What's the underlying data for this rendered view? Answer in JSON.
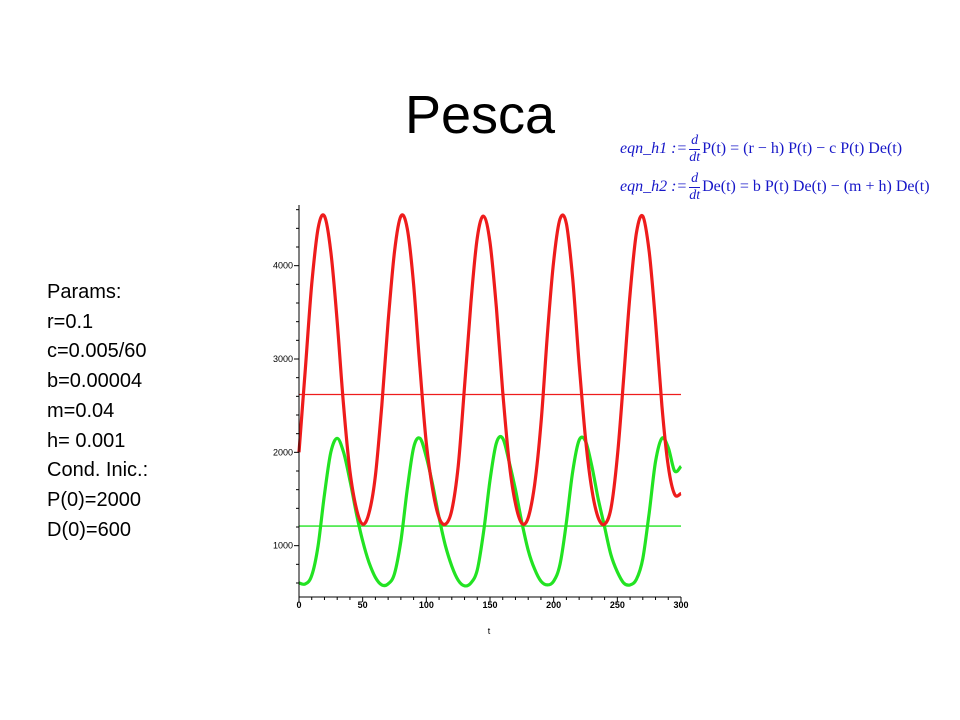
{
  "slide": {
    "title": "Pesca",
    "params_lines": [
      "Params:",
      "r=0.1",
      "c=0.005/60",
      "b=0.00004",
      "m=0.04",
      "h= 0.001",
      "Cond. Inic.:",
      "P(0)=2000",
      "D(0)=600"
    ],
    "eqn1": {
      "lhs": "eqn_h1 :=",
      "num": "d",
      "den": "dt",
      "rhs": "P(t) = (r − h) P(t) − c P(t) De(t)"
    },
    "eqn2": {
      "lhs": "eqn_h2 :=",
      "num": "d",
      "den": "dt",
      "rhs": "De(t) = b P(t) De(t) − (m + h) De(t)"
    }
  },
  "chart_data": {
    "type": "line",
    "title": "",
    "xlabel": "t",
    "ylabel": "",
    "xlim": [
      0,
      300
    ],
    "ylim": [
      450,
      4650
    ],
    "x_ticks": [
      0,
      50,
      100,
      150,
      200,
      250,
      300
    ],
    "y_ticks": [
      1000,
      2000,
      3000,
      4000
    ],
    "grid": false,
    "legend": "none",
    "colors": {
      "prey": "#ee1c1c",
      "predator": "#22e322",
      "prey_eq": "#ee1c1c",
      "predator_eq": "#22e322",
      "axis": "#000000"
    },
    "series": [
      {
        "x": [
          0,
          5,
          10,
          15,
          20,
          25,
          30,
          35,
          40,
          45,
          50,
          55,
          60,
          65,
          70,
          75,
          80,
          85,
          90,
          95,
          100,
          105,
          110,
          115,
          120,
          125,
          130,
          135,
          140,
          145,
          150,
          155,
          160,
          165,
          170,
          175,
          180,
          185,
          190,
          195,
          200,
          205,
          210,
          215,
          220,
          225,
          230,
          235,
          240,
          245,
          250,
          255,
          260,
          265,
          270,
          275,
          280,
          285,
          290,
          295,
          300
        ],
        "values": [
          2000,
          2900,
          3800,
          4400,
          4530,
          4150,
          3400,
          2500,
          1800,
          1400,
          1230,
          1350,
          1750,
          2500,
          3400,
          4150,
          4530,
          4400,
          3800,
          2900,
          2100,
          1600,
          1300,
          1230,
          1380,
          1850,
          2700,
          3600,
          4300,
          4530,
          4250,
          3550,
          2650,
          1900,
          1450,
          1240,
          1300,
          1650,
          2300,
          3250,
          4050,
          4500,
          4450,
          3850,
          2950,
          2150,
          1600,
          1300,
          1230,
          1400,
          1950,
          2800,
          3700,
          4350,
          4530,
          4150,
          3400,
          2500,
          1850,
          1550,
          1560
        ]
      },
      {
        "x": [
          0,
          5,
          10,
          15,
          20,
          25,
          30,
          35,
          40,
          45,
          50,
          55,
          60,
          65,
          70,
          75,
          80,
          85,
          90,
          95,
          100,
          105,
          110,
          115,
          120,
          125,
          130,
          135,
          140,
          145,
          150,
          155,
          160,
          165,
          170,
          175,
          180,
          185,
          190,
          195,
          200,
          205,
          210,
          215,
          220,
          225,
          230,
          235,
          240,
          245,
          250,
          255,
          260,
          265,
          270,
          275,
          280,
          285,
          290,
          295,
          300
        ],
        "values": [
          600,
          590,
          680,
          1000,
          1550,
          2000,
          2150,
          2000,
          1700,
          1350,
          1050,
          820,
          660,
          580,
          590,
          700,
          1050,
          1600,
          2050,
          2150,
          1950,
          1650,
          1300,
          1000,
          780,
          630,
          570,
          600,
          740,
          1150,
          1700,
          2100,
          2150,
          1900,
          1600,
          1250,
          950,
          750,
          620,
          580,
          620,
          800,
          1250,
          1800,
          2130,
          2120,
          1850,
          1500,
          1200,
          900,
          720,
          600,
          580,
          640,
          860,
          1350,
          1900,
          2150,
          2050,
          1800,
          1850
        ]
      },
      {
        "x": [
          0,
          300
        ],
        "values": [
          2620,
          2620
        ]
      },
      {
        "x": [
          0,
          300
        ],
        "values": [
          1210,
          1210
        ]
      }
    ]
  }
}
